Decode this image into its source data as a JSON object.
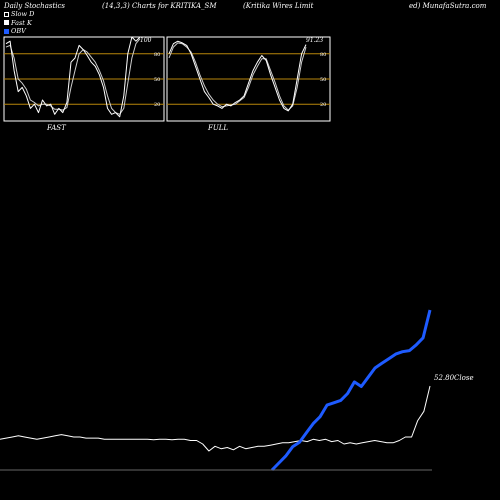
{
  "header": {
    "left": "Daily Stochastics",
    "mid": "(14,3,3) Charts for KRITIKA_SM",
    "right": "(Kritika  Wires Limit",
    "far": "ed) MunafaSutra.com"
  },
  "legend": [
    {
      "label": "Slow  D",
      "kind": "slow"
    },
    {
      "label": "Fast K",
      "kind": "fast"
    },
    {
      "label": "OBV",
      "kind": "obv"
    }
  ],
  "colors": {
    "obv": "#1e5bff",
    "grid": "#b8860b",
    "line": "#ffffff"
  },
  "chart_data": [
    {
      "type": "line",
      "title": "FAST",
      "yticks": [
        20,
        50,
        80
      ],
      "last_label": "100",
      "ylim": [
        0,
        100
      ],
      "series": [
        {
          "name": "Fast K",
          "values": [
            92,
            95,
            60,
            35,
            40,
            30,
            15,
            20,
            10,
            25,
            18,
            20,
            8,
            15,
            10,
            22,
            70,
            75,
            90,
            85,
            78,
            70,
            65,
            55,
            40,
            15,
            8,
            10,
            5,
            30,
            80,
            100,
            95,
            100
          ]
        },
        {
          "name": "Slow  D",
          "values": [
            88,
            90,
            75,
            50,
            45,
            38,
            25,
            22,
            18,
            20,
            20,
            18,
            14,
            14,
            13,
            16,
            40,
            60,
            80,
            85,
            82,
            76,
            70,
            60,
            48,
            30,
            15,
            10,
            8,
            15,
            45,
            75,
            92,
            98
          ]
        }
      ]
    },
    {
      "type": "line",
      "title": "FULL",
      "yticks": [
        20,
        50,
        80
      ],
      "last_label": "91.23",
      "ylim": [
        0,
        100
      ],
      "series": [
        {
          "name": "Fast K",
          "values": [
            80,
            92,
            95,
            93,
            90,
            80,
            65,
            50,
            35,
            28,
            20,
            18,
            15,
            20,
            18,
            22,
            25,
            30,
            45,
            60,
            70,
            78,
            72,
            55,
            40,
            25,
            15,
            12,
            20,
            50,
            80,
            91
          ]
        },
        {
          "name": "Slow  D",
          "values": [
            75,
            88,
            93,
            92,
            88,
            82,
            70,
            55,
            42,
            32,
            25,
            20,
            17,
            18,
            19,
            20,
            24,
            28,
            40,
            55,
            65,
            74,
            74,
            60,
            46,
            30,
            18,
            13,
            18,
            40,
            70,
            88
          ]
        }
      ]
    },
    {
      "type": "line",
      "title": "",
      "close_label": "52.80Close",
      "series": [
        {
          "name": "Close",
          "values": [
            30,
            30.5,
            31,
            31.5,
            31,
            30.5,
            30,
            30.5,
            31,
            31.5,
            32,
            31.5,
            31,
            31,
            30.5,
            30.5,
            30.5,
            30,
            30,
            30,
            30,
            30,
            30,
            30,
            30,
            29.8,
            30,
            30,
            29.8,
            30,
            30,
            29.5,
            29.5,
            28,
            25,
            27,
            26,
            26.5,
            25.5,
            27,
            26,
            26.5,
            27,
            27,
            27.5,
            28,
            28.5,
            28.5,
            29,
            29.5,
            29,
            30,
            29.5,
            30,
            29,
            29.5,
            28,
            28.5,
            28,
            28.5,
            29,
            29.5,
            29,
            28.5,
            28.5,
            29.5,
            31,
            31,
            38,
            42,
            52.8
          ]
        },
        {
          "name": "OBV",
          "values": [
            0,
            3,
            6,
            10,
            12,
            16,
            20,
            23,
            28,
            29,
            30,
            33,
            38,
            36,
            40,
            44,
            46,
            48,
            50,
            51,
            51.5,
            54,
            57,
            69
          ]
        }
      ]
    }
  ]
}
